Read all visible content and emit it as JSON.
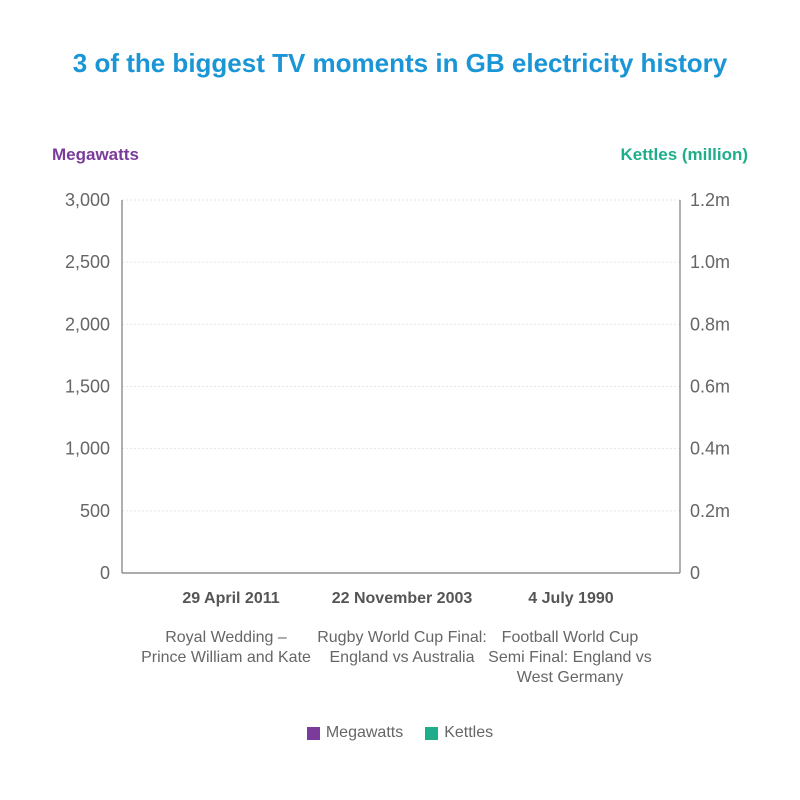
{
  "chart_data": {
    "type": "bar",
    "title": "3 of the biggest TV moments in GB electricity history",
    "ylabel": "Megawatts",
    "y2label": "Kettles (million)",
    "ylim": [
      0,
      3000
    ],
    "y2lim": [
      0,
      1.2
    ],
    "yticks": [
      "0",
      "500",
      "1,000",
      "1,500",
      "2,000",
      "2,500",
      "3,000"
    ],
    "y2ticks": [
      "0",
      "0.2m",
      "0.4m",
      "0.6m",
      "0.8m",
      "1.0m",
      "1.2m"
    ],
    "grid": true,
    "legend_position": "bottom",
    "categories": [
      {
        "date": "29 April 2011",
        "description": "Royal Wedding – Prince William and Kate"
      },
      {
        "date": "22 November 2003",
        "description": "Rugby World Cup Final: England vs Australia"
      },
      {
        "date": "4 July 1990",
        "description": "Football World Cup Semi Final: England vs West Germany"
      }
    ],
    "series": [
      {
        "name": "Megawatts",
        "color": "#7b3b9a",
        "values": [
          null,
          null,
          null
        ]
      },
      {
        "name": "Kettles",
        "color": "#1fae8b",
        "values": [
          null,
          null,
          null
        ]
      }
    ]
  },
  "colors": {
    "title": "#1a95d6",
    "left_axis_title": "#7b3b9a",
    "right_axis_title": "#1fae8b"
  }
}
